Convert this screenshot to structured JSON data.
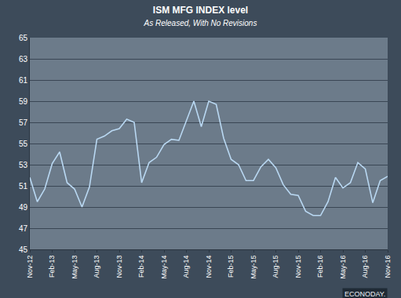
{
  "chart_data": {
    "type": "line",
    "title": "ISM MFG INDEX level",
    "subtitle": "As Released, With No Revisions",
    "annotations": [
      "ECONODAY."
    ],
    "categories": [
      "Nov-12",
      null,
      null,
      "Feb-13",
      null,
      null,
      "May-13",
      null,
      null,
      "Aug-13",
      null,
      null,
      "Nov-13",
      null,
      null,
      "Feb-14",
      null,
      null,
      "May-14",
      null,
      null,
      "Aug-14",
      null,
      null,
      "Nov-14",
      null,
      null,
      "Feb-15",
      null,
      null,
      "May-15",
      null,
      null,
      "Aug-15",
      null,
      null,
      "Nov-15",
      null,
      null,
      "Feb-16",
      null,
      null,
      "May-16",
      null,
      null,
      "Aug-16",
      null,
      null,
      "Nov-16"
    ],
    "values": [
      51.8,
      49.5,
      50.7,
      53.1,
      54.2,
      51.3,
      50.7,
      49.0,
      50.9,
      55.4,
      55.7,
      56.2,
      56.4,
      57.3,
      57.0,
      51.3,
      53.2,
      53.7,
      54.9,
      55.4,
      55.3,
      57.1,
      59.0,
      56.6,
      59.0,
      58.7,
      55.5,
      53.5,
      53.0,
      51.5,
      51.5,
      52.8,
      53.5,
      52.7,
      51.1,
      50.2,
      50.1,
      48.6,
      48.2,
      48.2,
      49.5,
      51.8,
      50.8,
      51.3,
      53.2,
      52.6,
      49.4,
      51.5,
      51.9
    ],
    "color": "#b9d8f2",
    "ylim": [
      45,
      65
    ],
    "yticks": [
      45,
      47,
      49,
      51,
      53,
      55,
      57,
      59,
      61,
      63,
      65
    ],
    "grid": true
  }
}
